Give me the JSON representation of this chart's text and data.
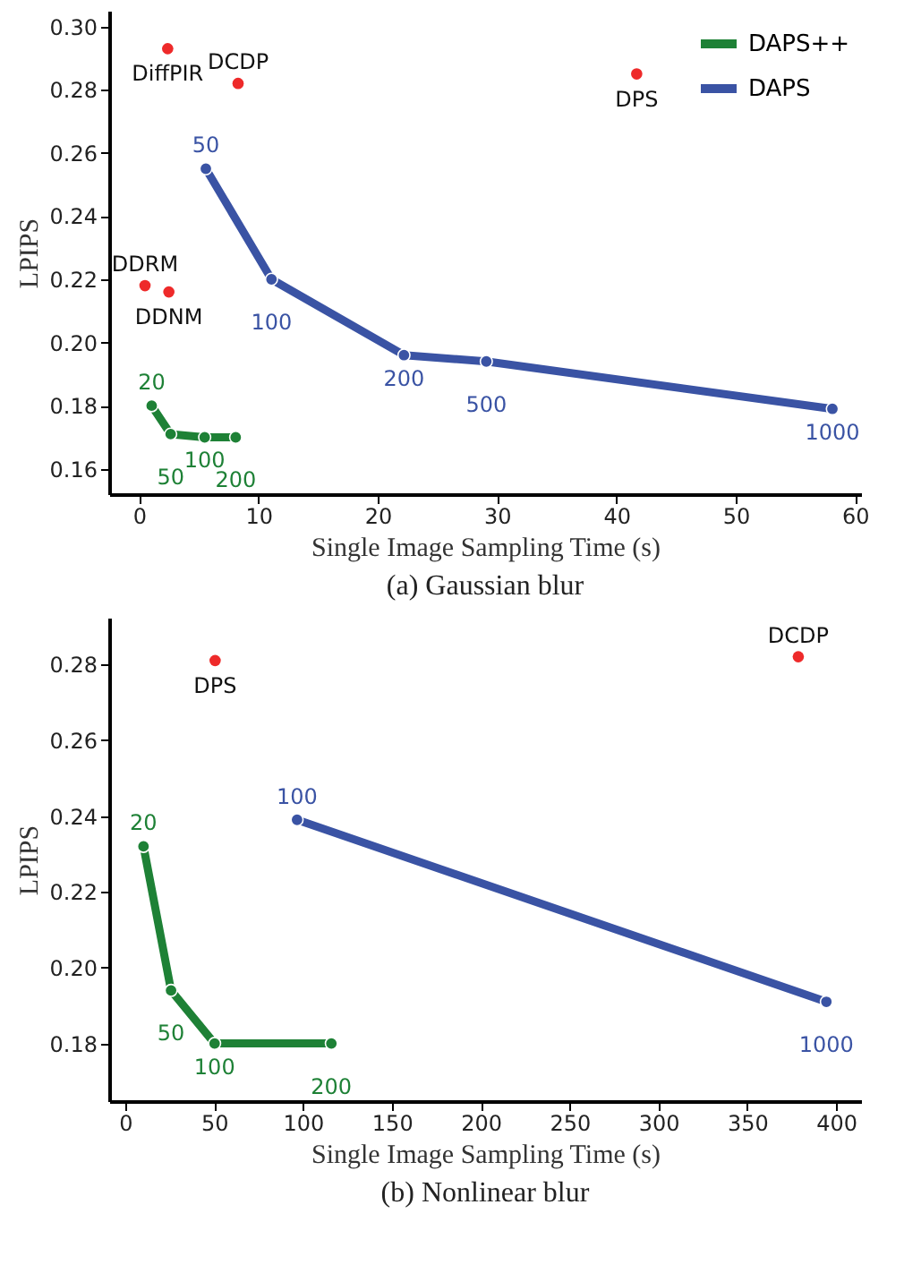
{
  "chart_data": [
    {
      "type": "line",
      "title": "(a) Gaussian blur",
      "xlabel": "Single Image Sampling Time (s)",
      "ylabel": "LPIPS",
      "xlim": [
        -2.5,
        60.5
      ],
      "ylim": [
        0.152,
        0.305
      ],
      "xticks": [
        0,
        10,
        20,
        30,
        40,
        50,
        60
      ],
      "yticks": [
        {
          "value": 0.16,
          "label": "0.16"
        },
        {
          "value": 0.18,
          "label": "0.18"
        },
        {
          "value": 0.2,
          "label": "0.20"
        },
        {
          "value": 0.22,
          "label": "0.22"
        },
        {
          "value": 0.24,
          "label": "0.24"
        },
        {
          "value": 0.26,
          "label": "0.26"
        },
        {
          "value": 0.28,
          "label": "0.28"
        },
        {
          "value": 0.3,
          "label": "0.30"
        }
      ],
      "legend": "top right",
      "marker": "circle",
      "grid": false,
      "series": [
        {
          "name": "DAPS++",
          "color": "#1e8136",
          "x": [
            1.06,
            2.65,
            5.5,
            8.1
          ],
          "values": [
            0.18,
            0.171,
            0.17,
            0.17
          ]
        },
        {
          "name": "DAPS",
          "color": "#3a53a4",
          "x": [
            5.6,
            11.1,
            22.2,
            29.1,
            58.1
          ],
          "values": [
            0.255,
            0.22,
            0.196,
            0.194,
            0.179
          ]
        },
        {
          "type": "scatter",
          "color": "#ee2a2a",
          "x": [
            2.4,
            8.3,
            41.7,
            0.5,
            2.5
          ],
          "values": [
            0.293,
            0.282,
            0.285,
            0.218,
            0.216
          ]
        }
      ],
      "annotations": [
        {
          "text": "20",
          "x": 1.06,
          "y": 0.18
        },
        {
          "text": "50",
          "x": 2.65,
          "y": 0.171
        },
        {
          "text": "100",
          "x": 5.5,
          "y": 0.17
        },
        {
          "text": "200",
          "x": 8.1,
          "y": 0.17
        },
        {
          "text": "50",
          "x": 5.6,
          "y": 0.255
        },
        {
          "text": "100",
          "x": 11.1,
          "y": 0.22
        },
        {
          "text": "200",
          "x": 22.2,
          "y": 0.196
        },
        {
          "text": "500",
          "x": 29.1,
          "y": 0.194
        },
        {
          "text": "1000",
          "x": 58.1,
          "y": 0.179
        },
        {
          "text": "DiffPIR",
          "x": 2.4,
          "y": 0.293
        },
        {
          "text": "DCDP",
          "x": 8.3,
          "y": 0.282
        },
        {
          "text": "DPS",
          "x": 41.7,
          "y": 0.285
        },
        {
          "text": "DDRM",
          "x": 0.5,
          "y": 0.218
        },
        {
          "text": "DDNM",
          "x": 2.5,
          "y": 0.216
        }
      ]
    },
    {
      "type": "line",
      "title": "(b) Nonlinear blur",
      "xlabel": "Single Image Sampling Time (s)",
      "ylabel": "LPIPS",
      "xlim": [
        -9,
        414
      ],
      "ylim": [
        0.1648,
        0.2923
      ],
      "xticks": [
        0,
        50,
        100,
        150,
        200,
        250,
        300,
        350,
        400
      ],
      "yticks": [
        {
          "value": 0.18,
          "label": "0.18"
        },
        {
          "value": 0.2,
          "label": "0.20"
        },
        {
          "value": 0.22,
          "label": "0.22"
        },
        {
          "value": 0.24,
          "label": "0.24"
        },
        {
          "value": 0.26,
          "label": "0.26"
        },
        {
          "value": 0.28,
          "label": "0.28"
        }
      ],
      "marker": "circle",
      "grid": false,
      "series": [
        {
          "color": "#1e8136",
          "x": [
            10.3,
            25.8,
            50.3,
            116
          ],
          "values": [
            0.232,
            0.194,
            0.18,
            0.18
          ]
        },
        {
          "color": "#3a53a4",
          "x": [
            96.7,
            394.5
          ],
          "values": [
            0.239,
            0.191
          ]
        },
        {
          "type": "scatter",
          "color": "#ee2a2a",
          "x": [
            50.6,
            378.7
          ],
          "values": [
            0.281,
            0.282
          ]
        }
      ],
      "annotations": [
        {
          "text": "20",
          "x": 10.3,
          "y": 0.232
        },
        {
          "text": "50",
          "x": 25.8,
          "y": 0.194
        },
        {
          "text": "100",
          "x": 50.3,
          "y": 0.18
        },
        {
          "text": "200",
          "x": 116,
          "y": 0.18
        },
        {
          "text": "100",
          "x": 96.7,
          "y": 0.239
        },
        {
          "text": "1000",
          "x": 394.5,
          "y": 0.191
        },
        {
          "text": "DPS",
          "x": 50.6,
          "y": 0.281
        },
        {
          "text": "DCDP",
          "x": 378.7,
          "y": 0.282
        }
      ]
    }
  ]
}
